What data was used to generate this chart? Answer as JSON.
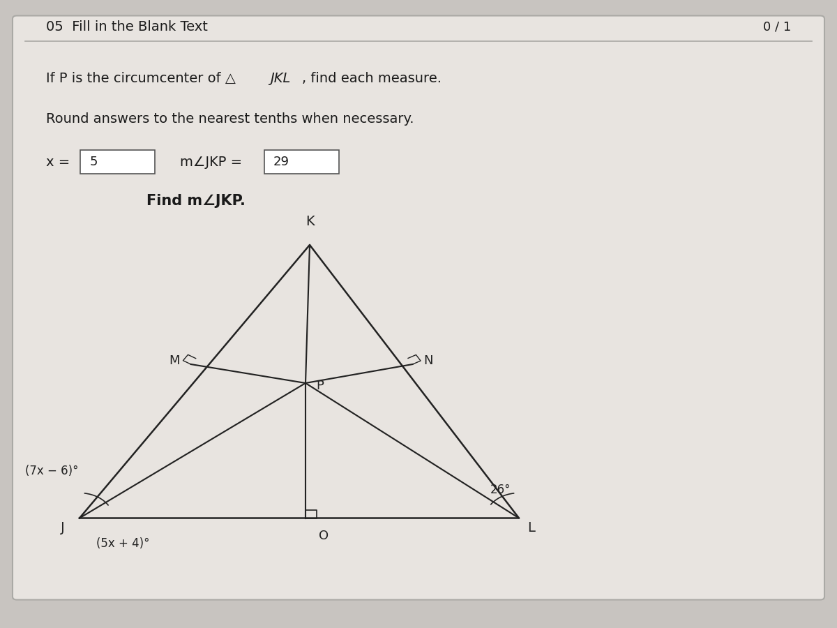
{
  "bg_color": "#c8c4c0",
  "card_color": "#e8e4e0",
  "title": "05  Fill in the Blank Text",
  "score": "0 / 1",
  "x_value": "5",
  "mjkp_value": "29",
  "find_text": "Find m∠JKP.",
  "angle_j_expr": "(7x − 6)°",
  "angle_jko_expr": "(5x + 4)°",
  "angle_l": "26°",
  "font_color": "#1a1a1a",
  "box_color": "#ffffff",
  "line_color": "#222222"
}
